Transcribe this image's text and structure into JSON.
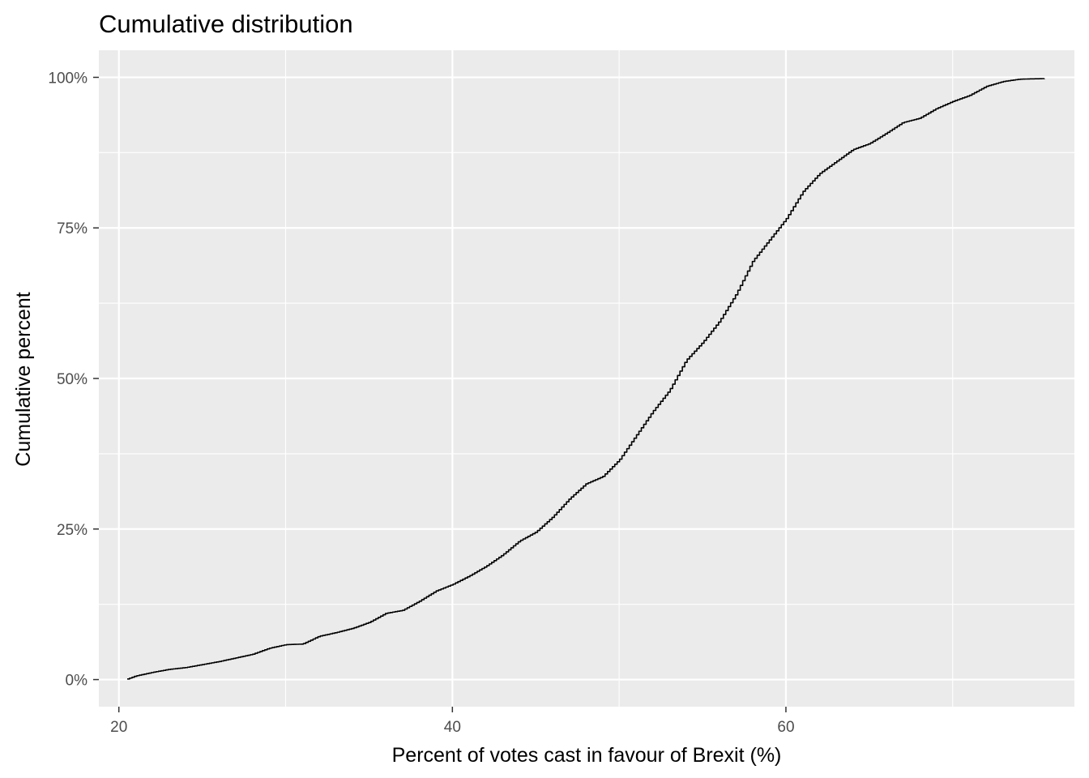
{
  "chart_data": {
    "type": "line",
    "title": "Cumulative distribution",
    "xlabel": "Percent of votes cast in favour of Brexit (%)",
    "ylabel": "Cumulative percent",
    "xlim": [
      18.8,
      77.3
    ],
    "ylim": [
      -4.5,
      104.5
    ],
    "x_ticks": [
      20,
      40,
      60
    ],
    "x_tick_labels": [
      "20",
      "40",
      "60"
    ],
    "x_minor_ticks": [
      30,
      50,
      70
    ],
    "y_ticks": [
      0,
      25,
      50,
      75,
      100
    ],
    "y_tick_labels": [
      "0%",
      "25%",
      "50%",
      "75%",
      "100%"
    ],
    "y_minor_ticks": [
      12.5,
      37.5,
      62.5,
      87.5
    ],
    "grid": true,
    "panel_background": "#ebebeb",
    "grid_color": "#ffffff",
    "line_color": "#000000",
    "series": [
      {
        "x": [
          20.5,
          21.0,
          22.0,
          23.0,
          24.0,
          25.0,
          26.0,
          27.0,
          28.0,
          29.0,
          30.0,
          31.0,
          32.0,
          33.0,
          34.0,
          35.0,
          36.0,
          37.0,
          38.0,
          39.0,
          40.0,
          41.0,
          42.0,
          43.0,
          44.0,
          45.0,
          46.0,
          47.0,
          48.0,
          49.0,
          50.0,
          51.0,
          52.0,
          53.0,
          54.0,
          55.0,
          56.0,
          57.0,
          58.0,
          59.0,
          60.0,
          61.0,
          62.0,
          63.0,
          64.0,
          65.0,
          66.0,
          67.0,
          68.0,
          69.0,
          70.0,
          71.0,
          72.0,
          73.0,
          74.0,
          75.5
        ],
        "y": [
          0.1,
          0.6,
          1.2,
          1.7,
          2.0,
          2.5,
          3.0,
          3.6,
          4.2,
          5.2,
          5.8,
          5.9,
          7.2,
          7.8,
          8.5,
          9.5,
          11.0,
          11.5,
          13.0,
          14.7,
          15.8,
          17.2,
          18.8,
          20.7,
          23.0,
          24.5,
          27.0,
          30.0,
          32.5,
          33.7,
          36.5,
          40.5,
          44.5,
          48.0,
          53.0,
          56.0,
          59.5,
          64.0,
          69.5,
          73.0,
          76.5,
          81.0,
          84.0,
          86.0,
          88.0,
          89.0,
          90.7,
          92.5,
          93.2,
          94.8,
          96.0,
          97.0,
          98.5,
          99.3,
          99.7,
          99.8
        ]
      }
    ]
  }
}
